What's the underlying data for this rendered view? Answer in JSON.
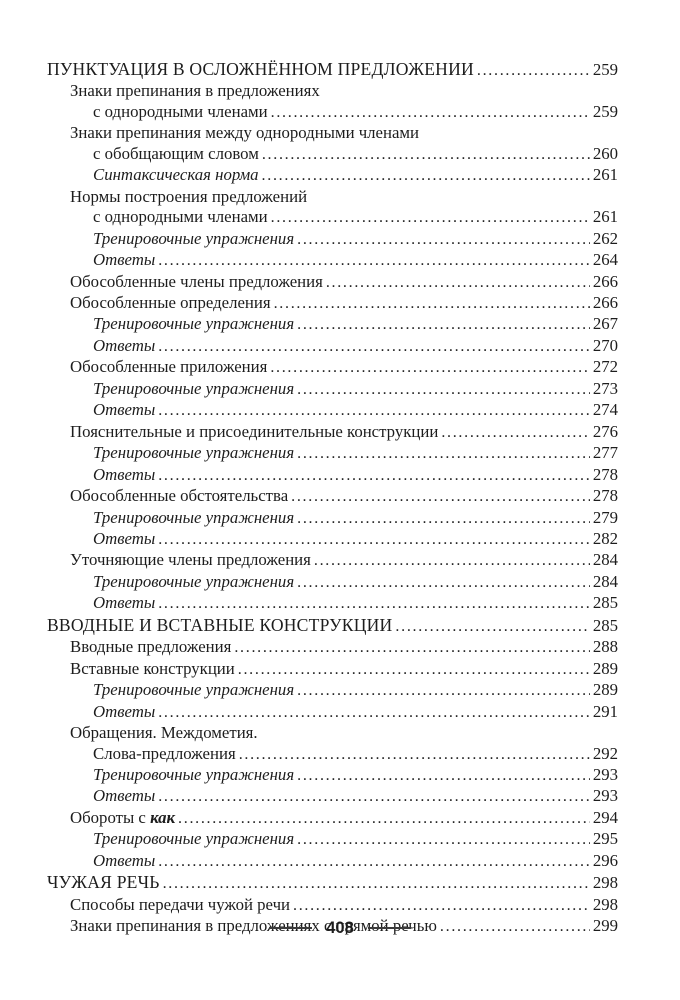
{
  "toc": {
    "entries": [
      {
        "indent": 0,
        "style": "chapter",
        "text": "ПУНКТУАЦИЯ В ОСЛОЖНЁННОМ ПРЕДЛОЖЕНИИ",
        "page": "259"
      },
      {
        "indent": 1,
        "style": "section",
        "text": "Знаки препинания в предложениях"
      },
      {
        "indent": 2,
        "style": "section",
        "text": "с однородными членами",
        "page": "259"
      },
      {
        "indent": 1,
        "style": "section",
        "text": "Знаки препинания между однородными членами"
      },
      {
        "indent": 2,
        "style": "section",
        "text": "с обобщающим словом",
        "page": "260"
      },
      {
        "indent": 2,
        "style": "exercise",
        "text": "Синтаксическая норма",
        "page": "261"
      },
      {
        "indent": 1,
        "style": "section",
        "text": "Нормы построения предложений"
      },
      {
        "indent": 2,
        "style": "section",
        "text": "с однородными членами",
        "page": "261"
      },
      {
        "indent": 2,
        "style": "exercise",
        "text": "Тренировочные упражнения",
        "page": "262"
      },
      {
        "indent": 2,
        "style": "exercise",
        "text": "Ответы",
        "page": "264"
      },
      {
        "indent": 1,
        "style": "section",
        "text": "Обособленные члены предложения",
        "page": "266"
      },
      {
        "indent": 1,
        "style": "section",
        "text": "Обособленные определения",
        "page": "266"
      },
      {
        "indent": 2,
        "style": "exercise",
        "text": "Тренировочные упражнения",
        "page": "267"
      },
      {
        "indent": 2,
        "style": "exercise",
        "text": "Ответы",
        "page": "270"
      },
      {
        "indent": 1,
        "style": "section",
        "text": "Обособленные приложения",
        "page": "272"
      },
      {
        "indent": 2,
        "style": "exercise",
        "text": "Тренировочные упражнения",
        "page": "273"
      },
      {
        "indent": 2,
        "style": "exercise",
        "text": "Ответы",
        "page": "274"
      },
      {
        "indent": 1,
        "style": "section",
        "text": "Пояснительные и присоединительные конструкции",
        "page": "276"
      },
      {
        "indent": 2,
        "style": "exercise",
        "text": "Тренировочные упражнения",
        "page": "277"
      },
      {
        "indent": 2,
        "style": "exercise",
        "text": "Ответы",
        "page": "278"
      },
      {
        "indent": 1,
        "style": "section",
        "text": "Обособленные обстоятельства",
        "page": "278"
      },
      {
        "indent": 2,
        "style": "exercise",
        "text": "Тренировочные упражнения",
        "page": "279"
      },
      {
        "indent": 2,
        "style": "exercise",
        "text": "Ответы",
        "page": "282"
      },
      {
        "indent": 1,
        "style": "section",
        "text": "Уточняющие члены предложения",
        "page": "284"
      },
      {
        "indent": 2,
        "style": "exercise",
        "text": "Тренировочные упражнения",
        "page": "284"
      },
      {
        "indent": 2,
        "style": "exercise",
        "text": "Ответы",
        "page": "285"
      },
      {
        "indent": 0,
        "style": "chapter",
        "text": "ВВОДНЫЕ И ВСТАВНЫЕ КОНСТРУКЦИИ",
        "page": "285"
      },
      {
        "indent": 1,
        "style": "section",
        "text": "Вводные предложения",
        "page": "288"
      },
      {
        "indent": 1,
        "style": "section",
        "text": "Вставные конструкции",
        "page": "289"
      },
      {
        "indent": 2,
        "style": "exercise",
        "text": "Тренировочные упражнения",
        "page": "289"
      },
      {
        "indent": 2,
        "style": "exercise",
        "text": "Ответы",
        "page": "291"
      },
      {
        "indent": 1,
        "style": "section",
        "text": "Обращения. Междометия."
      },
      {
        "indent": 2,
        "style": "section",
        "text": "Слова-предложения",
        "page": "292"
      },
      {
        "indent": 2,
        "style": "exercise",
        "text": "Тренировочные упражнения",
        "page": "293"
      },
      {
        "indent": 2,
        "style": "exercise",
        "text": "Ответы",
        "page": "293"
      },
      {
        "indent": 1,
        "style": "section",
        "text": "Обороты с ",
        "emphasis": "как",
        "page": "294"
      },
      {
        "indent": 2,
        "style": "exercise",
        "text": "Тренировочные упражнения",
        "page": "295"
      },
      {
        "indent": 2,
        "style": "exercise",
        "text": "Ответы",
        "page": "296"
      },
      {
        "indent": 0,
        "style": "chapter",
        "text": "ЧУЖАЯ РЕЧЬ",
        "page": "298"
      },
      {
        "indent": 1,
        "style": "section",
        "text": "Способы передачи чужой речи",
        "page": "298"
      },
      {
        "indent": 1,
        "style": "section",
        "text": "Знаки препинания в предложениях с прямой речью",
        "page": "299"
      }
    ]
  },
  "footer": {
    "page_number": "408"
  },
  "colors": {
    "text": "#1d1d1d",
    "rule": "#3b3b3b",
    "background": "#ffffff"
  }
}
